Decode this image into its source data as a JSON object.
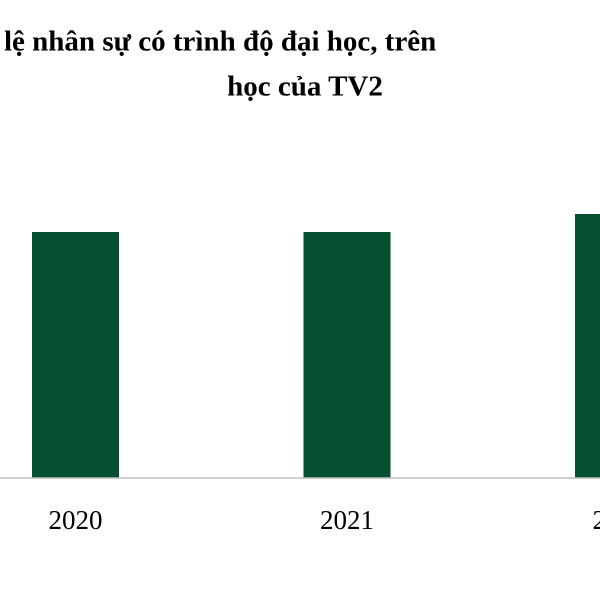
{
  "chart_data": {
    "type": "bar",
    "title_lines": [
      "lệ nhân sự có trình độ đại học, trên",
      "học của TV2"
    ],
    "categories": [
      "2020",
      "2021",
      "2"
    ],
    "values": [
      246,
      246,
      264
    ],
    "color": "#064f31",
    "ylim": [
      0,
      300
    ]
  }
}
